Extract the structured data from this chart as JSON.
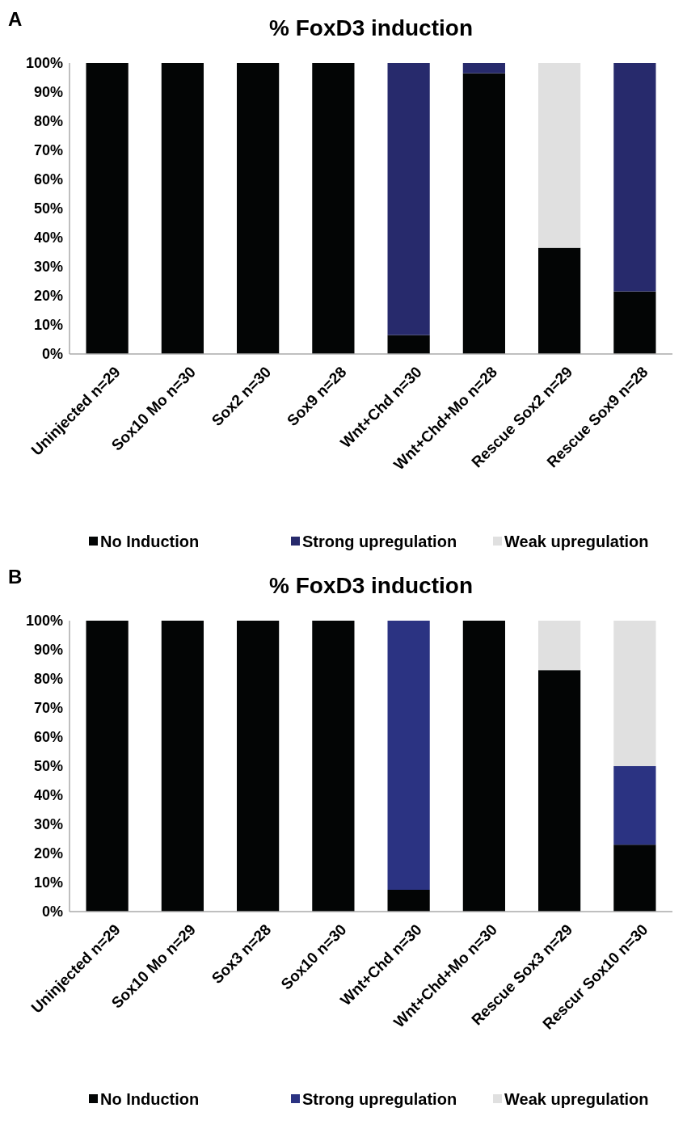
{
  "chart_data": [
    {
      "type": "bar",
      "title": "% FoxD3 induction",
      "stacked": true,
      "grid": false,
      "legend": "bottom",
      "annotations": [
        "A"
      ],
      "categories": [
        "Uninjected n=29",
        "Sox10 Mo n=30",
        "Sox2 n=30",
        "Sox9 n=28",
        "Wnt+Chd n=30",
        "Wnt+Chd+Mo n=28",
        "Rescue Sox2 n=29",
        "Rescue Sox9 n=28"
      ],
      "ylim": [
        0,
        100
      ],
      "yticks": [
        {
          "value": 0,
          "label": "0%"
        },
        {
          "value": 10,
          "label": "10%"
        },
        {
          "value": 20,
          "label": "20%"
        },
        {
          "value": 30,
          "label": "30%"
        },
        {
          "value": 40,
          "label": "40%"
        },
        {
          "value": 50,
          "label": "50%"
        },
        {
          "value": 60,
          "label": "60%"
        },
        {
          "value": 70,
          "label": "70%"
        },
        {
          "value": 80,
          "label": "80%"
        },
        {
          "value": 90,
          "label": "90%"
        },
        {
          "value": 100,
          "label": "100%"
        }
      ],
      "series": [
        {
          "name": "No Induction",
          "color": "#030505",
          "values": [
            100,
            100,
            100,
            100,
            6.5,
            96.5,
            36.5,
            21.5
          ]
        },
        {
          "name": "Strong upregulation",
          "color": "#272a6c",
          "values": [
            0,
            0,
            0,
            0,
            93.5,
            3.5,
            0,
            78.5
          ]
        },
        {
          "name": "Weak upregulation",
          "color": "#e0e0e0",
          "values": [
            0,
            0,
            0,
            0,
            0,
            0,
            63.5,
            0
          ]
        }
      ]
    },
    {
      "type": "bar",
      "title": "% FoxD3 induction",
      "stacked": true,
      "grid": false,
      "legend": "bottom",
      "annotations": [
        "B"
      ],
      "categories": [
        "Uninjected n=29",
        "Sox10 Mo n=29",
        "Sox3 n=28",
        "Sox10 n=30",
        "Wnt+Chd n=30",
        "Wnt+Chd+Mo n=30",
        "Rescue Sox3 n=29",
        "Rescur Sox10 n=30"
      ],
      "ylim": [
        0,
        100
      ],
      "yticks": [
        {
          "value": 0,
          "label": "0%"
        },
        {
          "value": 10,
          "label": "10%"
        },
        {
          "value": 20,
          "label": "20%"
        },
        {
          "value": 30,
          "label": "30%"
        },
        {
          "value": 40,
          "label": "40%"
        },
        {
          "value": 50,
          "label": "50%"
        },
        {
          "value": 60,
          "label": "60%"
        },
        {
          "value": 70,
          "label": "70%"
        },
        {
          "value": 80,
          "label": "80%"
        },
        {
          "value": 90,
          "label": "90%"
        },
        {
          "value": 100,
          "label": "100%"
        }
      ],
      "series": [
        {
          "name": "No Induction",
          "color": "#030505",
          "values": [
            100,
            100,
            100,
            100,
            7.5,
            100,
            83,
            23
          ]
        },
        {
          "name": "Strong upregulation",
          "color": "#2b3382",
          "values": [
            0,
            0,
            0,
            0,
            92.5,
            0,
            0,
            27
          ]
        },
        {
          "name": "Weak upregulation",
          "color": "#e0e0e0",
          "values": [
            0,
            0,
            0,
            0,
            0,
            0,
            17,
            50
          ]
        }
      ]
    }
  ]
}
